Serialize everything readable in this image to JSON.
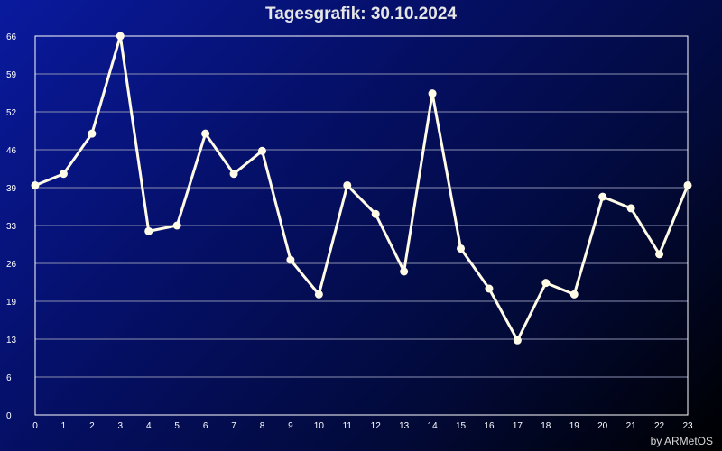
{
  "chart_data": {
    "type": "line",
    "title": "Tagesgrafik: 30.10.2024",
    "xlabel": "",
    "ylabel": "",
    "x": [
      0,
      1,
      2,
      3,
      4,
      5,
      6,
      7,
      8,
      9,
      10,
      11,
      12,
      13,
      14,
      15,
      16,
      17,
      18,
      19,
      20,
      21,
      22,
      23
    ],
    "y_ticks": [
      "0",
      "6",
      "13",
      "19",
      "26",
      "33",
      "39",
      "46",
      "52",
      "59",
      "66"
    ],
    "ylim": [
      0,
      66
    ],
    "series": [
      {
        "values": [
          40,
          42,
          49,
          66,
          32,
          33,
          49,
          42,
          46,
          27,
          21,
          40,
          35,
          25,
          56,
          29,
          22,
          13,
          23,
          21,
          38,
          36,
          28,
          40
        ]
      }
    ],
    "grid": true,
    "colors": {
      "line": "#fffbe6",
      "grid": "#8a8fb0",
      "axis": "#ffffff"
    }
  },
  "footer": {
    "credit": "by ARMetOS"
  }
}
